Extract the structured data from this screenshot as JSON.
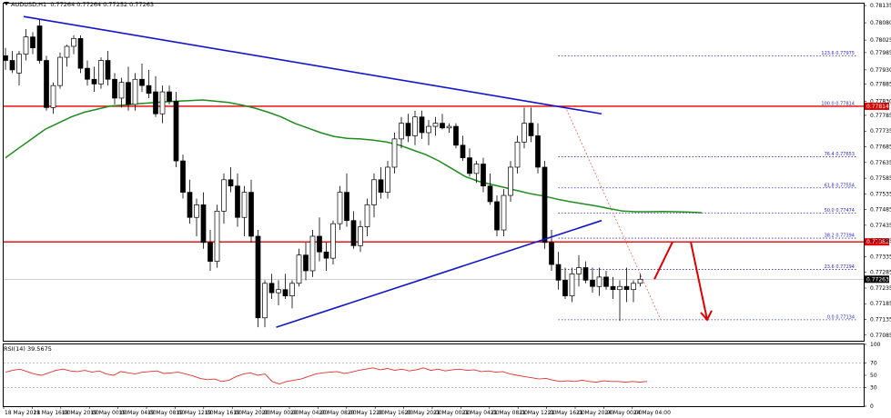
{
  "header": {
    "symbol": "AUDUSD,H1",
    "ohlc": "0.77264 0.77264 0.77252 0.77263"
  },
  "rsi_panel": {
    "title": "RSI(14) 39.5675"
  },
  "colors": {
    "bullish_candle": "#ffffff",
    "bearish_candle": "#000000",
    "ma_line": "#1e8c1e",
    "trendline": "#1414c8",
    "horizontal_level": "#e00000",
    "fib_levels": "#2a2ad0",
    "fib_diagonal": "#e06060",
    "forecast_arrow": "#e00000",
    "rsi_line": "#e03030",
    "current_price_label": "#ffffff"
  },
  "chart_data": [
    {
      "type": "candlestick",
      "symbol": "AUDUSD",
      "timeframe": "H1",
      "ylim": [
        0.77067,
        0.78141
      ],
      "y_ticks": [
        "0.78135",
        "0.78080",
        "0.78025",
        "0.77985",
        "0.77930",
        "0.77885",
        "0.77830",
        "0.77785",
        "0.77735",
        "0.77685",
        "0.77635",
        "0.77585",
        "0.77535",
        "0.77485",
        "0.77435",
        "0.77385",
        "0.77335",
        "0.77285",
        "0.77235",
        "0.77185",
        "0.77135",
        "0.77085"
      ],
      "x_ticks": [
        "18 May 2021",
        "18 May 16:00",
        "18 May 20:00",
        "19 May 00:00",
        "19 May 04:00",
        "19 May 08:00",
        "19 May 12:00",
        "19 May 16:00",
        "19 May 20:00",
        "20 May 00:00",
        "20 May 04:00",
        "20 May 08:00",
        "20 May 12:00",
        "20 May 16:00",
        "20 May 20:00",
        "21 May 00:00",
        "21 May 04:00",
        "21 May 08:00",
        "21 May 12:00",
        "21 May 16:00",
        "21 May 20:00",
        "24 May 00:00",
        "24 May 04:00"
      ],
      "ohlc": [
        [
          0.77975,
          0.78,
          0.7793,
          0.7796
        ],
        [
          0.7796,
          0.7799,
          0.7792,
          0.7793
        ],
        [
          0.7792,
          0.7799,
          0.7788,
          0.7798
        ],
        [
          0.7798,
          0.7806,
          0.7796,
          0.78035
        ],
        [
          0.78035,
          0.7805,
          0.7798,
          0.78
        ],
        [
          0.7807,
          0.7809,
          0.7795,
          0.7796
        ],
        [
          0.7796,
          0.77975,
          0.778,
          0.7781
        ],
        [
          0.7781,
          0.7789,
          0.7779,
          0.7788
        ],
        [
          0.7788,
          0.77985,
          0.7787,
          0.7797
        ],
        [
          0.7797,
          0.7801,
          0.7794,
          0.78005
        ],
        [
          0.78005,
          0.7804,
          0.7798,
          0.7803
        ],
        [
          0.7803,
          0.7804,
          0.7792,
          0.77935
        ],
        [
          0.77935,
          0.7796,
          0.7788,
          0.779
        ],
        [
          0.779,
          0.7794,
          0.7786,
          0.77885
        ],
        [
          0.77885,
          0.7797,
          0.7787,
          0.7796
        ],
        [
          0.7796,
          0.7799,
          0.7788,
          0.779
        ],
        [
          0.779,
          0.7792,
          0.7782,
          0.7784
        ],
        [
          0.7784,
          0.77905,
          0.7781,
          0.7789
        ],
        [
          0.7789,
          0.7794,
          0.778,
          0.7782
        ],
        [
          0.7782,
          0.7792,
          0.778,
          0.779
        ],
        [
          0.779,
          0.7795,
          0.7786,
          0.7788
        ],
        [
          0.7788,
          0.7793,
          0.7784,
          0.77855
        ],
        [
          0.7786,
          0.7791,
          0.7778,
          0.7779
        ],
        [
          0.7779,
          0.7788,
          0.7776,
          0.7786
        ],
        [
          0.7786,
          0.7788,
          0.7782,
          0.7783
        ],
        [
          0.7783,
          0.7786,
          0.7762,
          0.7764
        ],
        [
          0.7764,
          0.7766,
          0.7752,
          0.7754
        ],
        [
          0.7754,
          0.7758,
          0.7744,
          0.7746
        ],
        [
          0.7746,
          0.7752,
          0.774,
          0.775
        ],
        [
          0.775,
          0.7754,
          0.7736,
          0.7738
        ],
        [
          0.7738,
          0.7742,
          0.7729,
          0.7732
        ],
        [
          0.7732,
          0.775,
          0.773,
          0.7748
        ],
        [
          0.7748,
          0.776,
          0.7744,
          0.7758
        ],
        [
          0.7758,
          0.7762,
          0.7754,
          0.7756
        ],
        [
          0.7756,
          0.776,
          0.7743,
          0.7746
        ],
        [
          0.7746,
          0.7756,
          0.774,
          0.7754
        ],
        [
          0.7754,
          0.7758,
          0.7738,
          0.774
        ],
        [
          0.774,
          0.7742,
          0.7711,
          0.7714
        ],
        [
          0.7714,
          0.7726,
          0.7711,
          0.7725
        ],
        [
          0.7725,
          0.7728,
          0.772,
          0.7722
        ],
        [
          0.7722,
          0.7726,
          0.7718,
          0.7723
        ],
        [
          0.7723,
          0.7728,
          0.772,
          0.7721
        ],
        [
          0.7721,
          0.7726,
          0.7717,
          0.7725
        ],
        [
          0.7725,
          0.7736,
          0.7724,
          0.7734
        ],
        [
          0.7734,
          0.7738,
          0.7726,
          0.7729
        ],
        [
          0.7729,
          0.7742,
          0.7727,
          0.774
        ],
        [
          0.774,
          0.7746,
          0.7732,
          0.7735
        ],
        [
          0.7735,
          0.7738,
          0.7729,
          0.7733
        ],
        [
          0.7733,
          0.7745,
          0.7731,
          0.7744
        ],
        [
          0.7744,
          0.7756,
          0.7742,
          0.7754
        ],
        [
          0.7754,
          0.776,
          0.7743,
          0.7745
        ],
        [
          0.7745,
          0.7748,
          0.7736,
          0.7737
        ],
        [
          0.7737,
          0.7745,
          0.7735,
          0.7743
        ],
        [
          0.7743,
          0.7752,
          0.774,
          0.775
        ],
        [
          0.775,
          0.776,
          0.7746,
          0.7758
        ],
        [
          0.7758,
          0.7762,
          0.7752,
          0.7754
        ],
        [
          0.7754,
          0.7764,
          0.7752,
          0.7762
        ],
        [
          0.7762,
          0.7773,
          0.776,
          0.7771
        ],
        [
          0.7771,
          0.7778,
          0.7768,
          0.7776
        ],
        [
          0.7776,
          0.7779,
          0.777,
          0.7772
        ],
        [
          0.7772,
          0.778,
          0.7769,
          0.7778
        ],
        [
          0.7778,
          0.778,
          0.7771,
          0.7773
        ],
        [
          0.7773,
          0.7777,
          0.7769,
          0.7775
        ],
        [
          0.7775,
          0.7778,
          0.7772,
          0.7776
        ],
        [
          0.7776,
          0.7779,
          0.7774,
          0.77745
        ],
        [
          0.77745,
          0.7776,
          0.7773,
          0.7775
        ],
        [
          0.7775,
          0.7776,
          0.7768,
          0.7769
        ],
        [
          0.7769,
          0.7772,
          0.7764,
          0.7765
        ],
        [
          0.7765,
          0.7768,
          0.7759,
          0.776
        ],
        [
          0.776,
          0.7764,
          0.7757,
          0.7763
        ],
        [
          0.7763,
          0.7765,
          0.7754,
          0.7756
        ],
        [
          0.7756,
          0.776,
          0.775,
          0.7751
        ],
        [
          0.7751,
          0.7753,
          0.774,
          0.7742
        ],
        [
          0.7742,
          0.7755,
          0.774,
          0.7753
        ],
        [
          0.7753,
          0.7764,
          0.7751,
          0.7762
        ],
        [
          0.7762,
          0.7772,
          0.776,
          0.777
        ],
        [
          0.777,
          0.7781,
          0.7768,
          0.7776
        ],
        [
          0.7776,
          0.7781,
          0.777,
          0.7772
        ],
        [
          0.7772,
          0.7776,
          0.776,
          0.7762
        ],
        [
          0.7762,
          0.7764,
          0.7736,
          0.7738
        ],
        [
          0.7738,
          0.7742,
          0.7729,
          0.7731
        ],
        [
          0.7731,
          0.7735,
          0.7723,
          0.7726
        ],
        [
          0.7726,
          0.773,
          0.772,
          0.7721
        ],
        [
          0.7721,
          0.773,
          0.7719,
          0.7728
        ],
        [
          0.7728,
          0.7734,
          0.7724,
          0.773
        ],
        [
          0.773,
          0.7732,
          0.7725,
          0.7726
        ],
        [
          0.7726,
          0.773,
          0.7722,
          0.7724
        ],
        [
          0.7724,
          0.773,
          0.7721,
          0.7727
        ],
        [
          0.7727,
          0.7729,
          0.7723,
          0.7724
        ],
        [
          0.7724,
          0.7727,
          0.772,
          0.7723
        ],
        [
          0.7723,
          0.7726,
          0.7713,
          0.7724
        ],
        [
          0.7724,
          0.773,
          0.7719,
          0.7723
        ],
        [
          0.7723,
          0.7726,
          0.7719,
          0.7725
        ],
        [
          0.7725,
          0.7728,
          0.7724,
          0.77263
        ]
      ],
      "moving_average": [
        0.7765,
        0.7768,
        0.7771,
        0.7774,
        0.7776,
        0.7778,
        0.77795,
        0.77805,
        0.77815,
        0.77818,
        0.77822,
        0.77825,
        0.77828,
        0.7783,
        0.77832,
        0.77834,
        0.7783,
        0.77826,
        0.77818,
        0.77808,
        0.77795,
        0.7778,
        0.7776,
        0.77745,
        0.7773,
        0.77718,
        0.77712,
        0.7771,
        0.77706,
        0.777,
        0.7769,
        0.77675,
        0.7766,
        0.7764,
        0.77615,
        0.7759,
        0.77575,
        0.77565,
        0.77555,
        0.77545,
        0.77535,
        0.77528,
        0.77518,
        0.7751,
        0.77503,
        0.77496,
        0.77488,
        0.7748,
        0.77478,
        0.77478,
        0.77479,
        0.77478,
        0.77477,
        0.77475
      ],
      "price_levels": [
        {
          "kind": "resistance",
          "value": 0.77814,
          "label": "0.77814"
        },
        {
          "kind": "resistance",
          "value": 0.77382,
          "label": "0.77382"
        }
      ],
      "current_price": {
        "value": 0.77263,
        "label": "0.77263"
      },
      "trendlines": [
        {
          "name": "bearish-trend-line",
          "from": [
            0,
            0.781
          ],
          "to": [
            82,
            0.7779
          ]
        },
        {
          "name": "bullish-trend-line",
          "from": [
            37,
            0.7711
          ],
          "to": [
            82,
            0.7745
          ]
        }
      ],
      "fibonacci": {
        "high": 0.77814,
        "low": 0.77134,
        "levels": [
          {
            "label": "123.6 0.77975",
            "value": 0.77975
          },
          {
            "label": "100.0 0.77814",
            "value": 0.77814
          },
          {
            "label": "76.4 0.77653",
            "value": 0.77653
          },
          {
            "label": "61.8 0.77554",
            "value": 0.77554
          },
          {
            "label": "50.0 0.77474",
            "value": 0.77474
          },
          {
            "label": "38.2 0.77394",
            "value": 0.77394
          },
          {
            "label": "23.6 0.77294",
            "value": 0.77294
          },
          {
            "label": "0.0 0.77134",
            "value": 0.77134
          }
        ]
      }
    },
    {
      "type": "line",
      "name": "RSI(14)",
      "ylim": [
        0,
        100
      ],
      "y_ticks": [
        "100",
        "70",
        "50",
        "30",
        "0"
      ],
      "values": [
        55,
        58,
        60,
        56,
        52,
        50,
        54,
        58,
        60,
        57,
        56,
        58,
        55,
        57,
        52,
        50,
        56,
        54,
        52,
        55,
        56,
        57,
        53,
        54,
        55,
        52,
        49,
        45,
        43,
        44,
        40,
        42,
        48,
        52,
        54,
        50,
        52,
        40,
        36,
        40,
        42,
        44,
        48,
        52,
        54,
        55,
        56,
        53,
        55,
        58,
        60,
        62,
        59,
        61,
        58,
        60,
        57,
        59,
        62,
        58,
        60,
        57,
        59,
        60,
        58,
        59,
        56,
        57,
        55,
        56,
        52,
        50,
        48,
        46,
        44,
        45,
        42,
        40,
        41,
        40,
        42,
        40,
        39,
        41,
        40,
        40,
        39,
        40,
        39,
        40
      ]
    }
  ]
}
